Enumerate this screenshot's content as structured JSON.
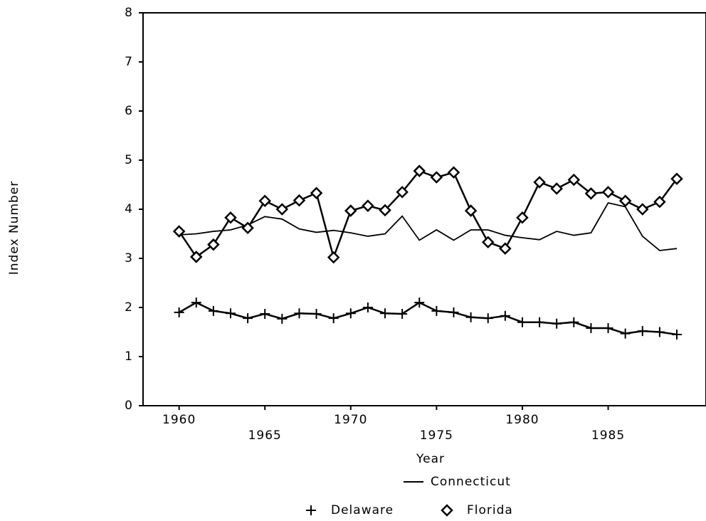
{
  "chart_data": {
    "type": "line",
    "x_label": "Year",
    "y_label": "Index Number",
    "x": [
      1960,
      1961,
      1962,
      1963,
      1964,
      1965,
      1966,
      1967,
      1968,
      1969,
      1970,
      1971,
      1972,
      1973,
      1974,
      1975,
      1976,
      1977,
      1978,
      1979,
      1980,
      1981,
      1982,
      1983,
      1984,
      1985,
      1986,
      1987,
      1988,
      1989
    ],
    "series": [
      {
        "name": "Connecticut",
        "color": "#000000",
        "marker": "none",
        "values": [
          3.48,
          3.5,
          3.55,
          3.58,
          3.68,
          3.85,
          3.8,
          3.6,
          3.53,
          3.57,
          3.52,
          3.45,
          3.5,
          3.86,
          3.37,
          3.58,
          3.37,
          3.58,
          3.58,
          3.47,
          3.42,
          3.38,
          3.55,
          3.47,
          3.52,
          4.13,
          4.05,
          3.45,
          3.16,
          3.2
        ]
      },
      {
        "name": "Delaware",
        "color": "#000000",
        "marker": "plus",
        "values": [
          1.9,
          2.1,
          1.93,
          1.88,
          1.78,
          1.87,
          1.77,
          1.88,
          1.87,
          1.78,
          1.88,
          2.0,
          1.88,
          1.87,
          2.1,
          1.93,
          1.9,
          1.8,
          1.78,
          1.83,
          1.7,
          1.7,
          1.67,
          1.7,
          1.58,
          1.58,
          1.47,
          1.52,
          1.5,
          1.45
        ]
      },
      {
        "name": "Florida",
        "color": "#000000",
        "marker": "diamond",
        "values": [
          3.55,
          3.03,
          3.28,
          3.83,
          3.62,
          4.17,
          4.0,
          4.18,
          4.33,
          3.02,
          3.97,
          4.07,
          3.98,
          4.35,
          4.78,
          4.65,
          4.75,
          3.97,
          3.33,
          3.2,
          3.83,
          4.55,
          4.42,
          4.6,
          4.32,
          4.35,
          4.17,
          4.0,
          4.15,
          4.62
        ]
      }
    ],
    "xlim": [
      1957.9,
      1990.7
    ],
    "xticks": [
      1960,
      1965,
      1970,
      1975,
      1980,
      1985
    ],
    "ylim": [
      0,
      8
    ],
    "yticks": [
      0,
      1,
      2,
      3,
      4,
      5,
      6,
      7,
      8
    ]
  }
}
